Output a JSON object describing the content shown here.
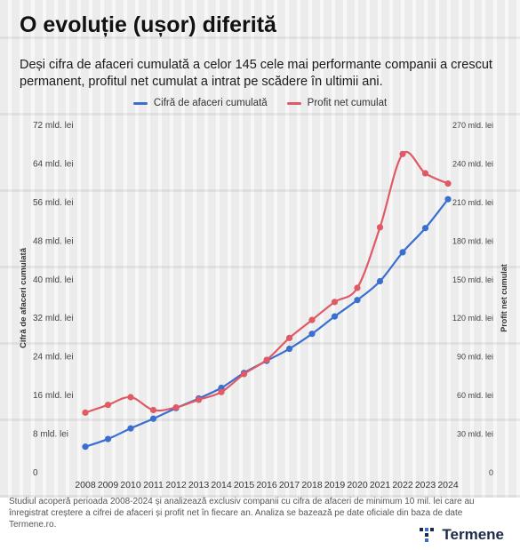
{
  "header": {
    "title": "O evoluție (ușor) diferită",
    "subtitle": "Deși cifra de afaceri cumulată a celor 145 cele mai performante companii a crescut permanent, profitul net cumulat a intrat pe scădere în ultimii ani."
  },
  "footer": {
    "note": "Studiul acoperă perioada 2008-2024 și analizează exclusiv companii cu cifra de afaceri de minimum 10 mil. lei care au înregistrat creștere a cifrei de afaceri și profit net în fiecare an. Analiza se bazează pe date oficiale din baza de date Termene.ro.",
    "logo_text": "Termene"
  },
  "chart_data": {
    "type": "line",
    "title": "",
    "xlabel": "",
    "ylabel_left": "Cifră de afaceri cumulată",
    "ylabel_right": "Profit net cumulat",
    "x": [
      "2008",
      "2009",
      "2010",
      "2011",
      "2012",
      "2013",
      "2014",
      "2015",
      "2016",
      "2017",
      "2018",
      "2019",
      "2020",
      "2021",
      "2022",
      "2023",
      "2024"
    ],
    "yticks_left": [
      "0",
      "8 mld. lei",
      "16 mld. lei",
      "24 mld. lei",
      "32 mld. lei",
      "40 mld. lei",
      "48 mld. lei",
      "56 mld. lei",
      "64 mld. lei",
      "72 mld. lei"
    ],
    "yticks_right": [
      "0",
      "30 mld. lei",
      "60 mld. lei",
      "90 mld. lei",
      "120 mld. lei",
      "150 mld. lei",
      "180 mld. lei",
      "210 mld. lei",
      "240 mld. lei",
      "270 mld. lei"
    ],
    "ylim_left": [
      0,
      72
    ],
    "ylim_right": [
      0,
      270
    ],
    "legend_position": "top-center",
    "grid": false,
    "series": [
      {
        "name": "Cifră de afaceri cumulată",
        "axis": "left",
        "color": "#3a6fd0",
        "values": [
          5.2,
          6.8,
          9.0,
          11.0,
          13.2,
          15.2,
          17.4,
          20.5,
          23.0,
          25.5,
          28.6,
          32.2,
          35.6,
          39.5,
          45.5,
          50.5,
          56.5
        ]
      },
      {
        "name": "Profit net cumulat",
        "axis": "right",
        "color": "#e05a66",
        "values": [
          46,
          52,
          58,
          48,
          50,
          56,
          62,
          76,
          87,
          104,
          118,
          132,
          143,
          190,
          247,
          232,
          224
        ]
      }
    ]
  }
}
